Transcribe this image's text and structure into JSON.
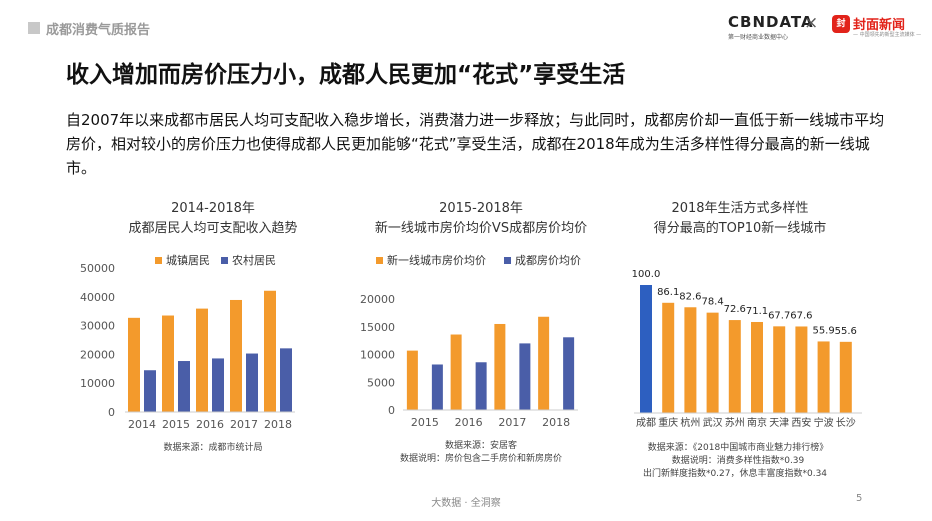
{
  "header": {
    "section_title": "成都消费气质报告",
    "logo_cbndata": "CBNDATA",
    "logo_cbndata_sub": "第一财经商业数据中心",
    "logo_separator": "×",
    "logo_fengmian_seal": "封",
    "logo_fengmian": "封面新闻",
    "logo_fengmian_sub": "— 中国领先的新型主流媒体 —"
  },
  "title": "收入增加而房价压力小，成都人民更加“花式”享受生活",
  "paragraph": "自2007年以来成都市居民人均可支配收入稳步增长，消费潜力进一步释放；与此同时，成都房价却一直低于新一线城市平均房价，相对较小的房价压力也使得成都人民更加能够“花式”享受生活，成都在2018年成为生活多样性得分最高的新一线城市。",
  "colors": {
    "orange": "#f39a2c",
    "blue": "#4a5ea8",
    "blue_highlight": "#2d5fc0"
  },
  "chart_data": [
    {
      "type": "bar",
      "title": "2014-2018年",
      "subtitle": "成都居民人均可支配收入趋势",
      "categories": [
        "2014",
        "2015",
        "2016",
        "2017",
        "2018"
      ],
      "series": [
        {
          "name": "城镇居民",
          "values": [
            32700,
            33500,
            35900,
            38900,
            42100
          ]
        },
        {
          "name": "农村居民",
          "values": [
            14500,
            17700,
            18600,
            20300,
            22100
          ]
        }
      ],
      "y_ticks": [
        "0",
        "10000",
        "20000",
        "30000",
        "40000",
        "50000"
      ],
      "ylim": [
        0,
        50000
      ],
      "legend": "top",
      "source": "数据来源：成都市统计局"
    },
    {
      "type": "bar",
      "title": "2015-2018年",
      "subtitle": "新一线城市房价均价VS成都房价均价",
      "categories": [
        "2015",
        "2016",
        "2017",
        "2018"
      ],
      "series": [
        {
          "name": "新一线城市房价均价",
          "values": [
            10700,
            13600,
            15500,
            16800
          ]
        },
        {
          "name": "成都房价均价",
          "values": [
            8200,
            8600,
            12000,
            13100
          ]
        }
      ],
      "y_ticks": [
        "0",
        "5000",
        "10000",
        "15000",
        "20000"
      ],
      "ylim": [
        0,
        20000
      ],
      "legend": "top",
      "source": "数据来源：安居客",
      "note": "数据说明：房价包含二手房价和新房房价"
    },
    {
      "type": "bar",
      "title": "2018年生活方式多样性",
      "subtitle": "得分最高的TOP10新一线城市",
      "categories": [
        "成都",
        "重庆",
        "杭州",
        "武汉",
        "苏州",
        "南京",
        "天津",
        "西安",
        "宁波",
        "长沙"
      ],
      "values": [
        100.0,
        86.1,
        82.6,
        78.4,
        72.6,
        71.1,
        67.7,
        67.6,
        55.9,
        55.6
      ],
      "value_labels": [
        "100.0",
        "86.1",
        "82.6",
        "78.4",
        "72.6",
        "71.1",
        "67.7",
        "67.6",
        "55.9",
        "55.6"
      ],
      "ylim": [
        0,
        100
      ],
      "source": "数据来源：《2018中国城市商业魅力排行榜》",
      "note1": "数据说明：消费多样性指数*0.39",
      "note2": "出门新鲜度指数*0.27，休息丰富度指数*0.34"
    }
  ],
  "footer": {
    "text": "大数据 · 全洞察",
    "page": "5"
  }
}
